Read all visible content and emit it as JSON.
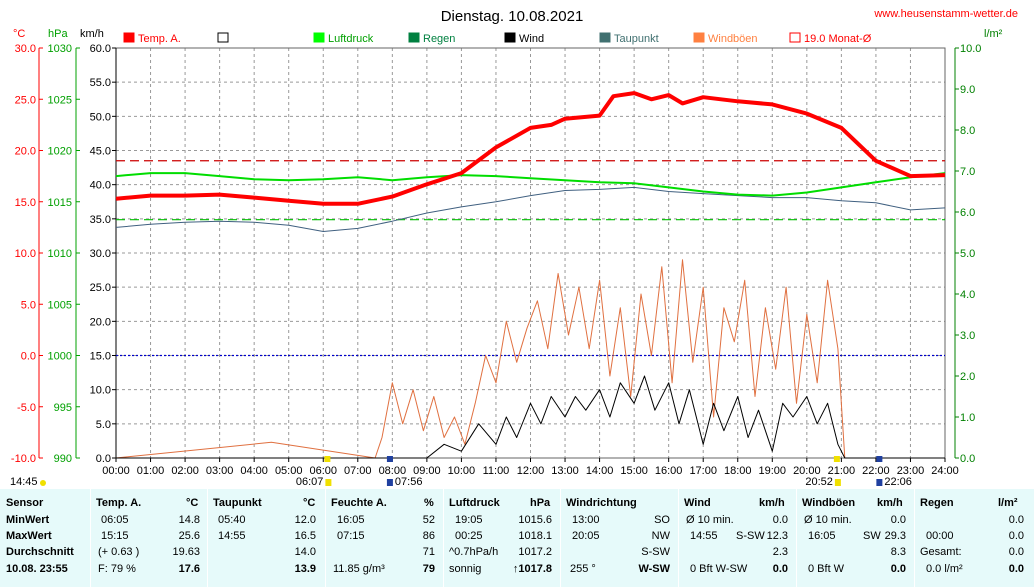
{
  "chart_data": {
    "type": "line",
    "title": "Dienstag. 10.08.2021",
    "site": "www.heusenstamm-wetter.de",
    "axes": {
      "temp": {
        "label": "°C",
        "min": -10,
        "max": 30,
        "step": 5,
        "color": "#ff0000"
      },
      "pressure": {
        "label": "hPa",
        "min": 990,
        "max": 1030,
        "step": 5,
        "color": "#00a000"
      },
      "wind": {
        "label": "km/h",
        "min": 0,
        "max": 60,
        "step": 5,
        "color": "#000000"
      },
      "rain": {
        "label": "l/m²",
        "min": 0,
        "max": 10,
        "step": 1,
        "color": "#008000"
      }
    },
    "x_ticks": [
      "00:00",
      "01:00",
      "02:00",
      "03:00",
      "04:00",
      "05:00",
      "06:00",
      "07:00",
      "08:00",
      "09:00",
      "10:00",
      "11:00",
      "12:00",
      "13:00",
      "14:00",
      "15:00",
      "16:00",
      "17:00",
      "18:00",
      "19:00",
      "20:00",
      "21:00",
      "22:00",
      "23:00",
      "24:00"
    ],
    "time_markers": [
      {
        "label": "14:45",
        "hour": 0
      },
      {
        "label": "06:07",
        "hour": 6.12
      },
      {
        "label": "07:56",
        "hour": 7.93
      },
      {
        "label": "20:52",
        "hour": 20.87
      },
      {
        "label": "22:06",
        "hour": 22.1
      }
    ],
    "legend": [
      {
        "name": "Temp. A.",
        "color": "#ff0000",
        "style": "filled"
      },
      {
        "name": "",
        "color": "#ffffff",
        "style": "empty"
      },
      {
        "name": "Luftdruck",
        "color": "#00ff00",
        "style": "filled"
      },
      {
        "name": "Regen",
        "color": "#008040",
        "style": "filled"
      },
      {
        "name": "Wind",
        "color": "#000000",
        "style": "filled"
      },
      {
        "name": "Taupunkt",
        "color": "#407070",
        "style": "filled"
      },
      {
        "name": "Windböen",
        "color": "#ff8040",
        "style": "filled"
      },
      {
        "name": "19.0 Monat-Ø",
        "color": "#ff0000",
        "style": "outline"
      }
    ],
    "reference_lines": [
      {
        "axis": "temp",
        "value": 19.0,
        "color": "#cc0000",
        "style": "dashed"
      },
      {
        "axis": "pressure",
        "value": 1013.25,
        "color": "#00c000",
        "style": "dashed"
      },
      {
        "axis": "pressure",
        "value": 1000,
        "color": "#0000cc",
        "style": "dotted"
      }
    ],
    "series": [
      {
        "name": "Temp. A.",
        "axis": "temp",
        "color": "#ff0000",
        "x": [
          0,
          1,
          2,
          3,
          4,
          5,
          6,
          7,
          8,
          9,
          10,
          11,
          12,
          12.6,
          13,
          14,
          14.4,
          15,
          15.5,
          16,
          16.4,
          17,
          18,
          19,
          20,
          21,
          22,
          23,
          24
        ],
        "y": [
          15.3,
          15.6,
          15.6,
          15.7,
          15.4,
          15.1,
          14.8,
          14.8,
          15.5,
          16.7,
          17.8,
          20.3,
          22.2,
          22.5,
          23.1,
          23.4,
          25.3,
          25.6,
          25.0,
          25.4,
          24.6,
          25.2,
          24.8,
          24.5,
          23.6,
          22.2,
          19.0,
          17.5,
          17.6
        ]
      },
      {
        "name": "Luftdruck",
        "axis": "pressure",
        "color": "#00dd00",
        "x": [
          0,
          1,
          2,
          3,
          4,
          5,
          6,
          7,
          8,
          9,
          10,
          11,
          12,
          13,
          14,
          15,
          16,
          17,
          18,
          19,
          20,
          21,
          22,
          23,
          24
        ],
        "y": [
          1017.5,
          1017.8,
          1017.8,
          1017.5,
          1017.2,
          1017.1,
          1017.2,
          1017.4,
          1017.1,
          1017.4,
          1017.6,
          1017.5,
          1017.3,
          1017.1,
          1016.9,
          1016.8,
          1016.4,
          1016.0,
          1015.7,
          1015.6,
          1015.9,
          1016.4,
          1016.9,
          1017.4,
          1017.8
        ]
      },
      {
        "name": "Taupunkt",
        "axis": "temp",
        "color": "#406080",
        "x": [
          0,
          1,
          2,
          3,
          4,
          5,
          6,
          7,
          8,
          9,
          10,
          11,
          12,
          13,
          14,
          15,
          16,
          17,
          18,
          19,
          20,
          21,
          22,
          23,
          24
        ],
        "y": [
          12.5,
          12.8,
          13.0,
          13.1,
          13.0,
          12.7,
          12.1,
          12.4,
          13.1,
          13.9,
          14.5,
          15.0,
          15.6,
          16.1,
          16.2,
          16.4,
          16.0,
          15.8,
          15.6,
          15.4,
          15.4,
          15.1,
          14.9,
          14.2,
          14.4
        ]
      },
      {
        "name": "Windböen",
        "axis": "wind",
        "color": "#e07040",
        "x": [
          0,
          4.5,
          7.5,
          7.7,
          8,
          8.3,
          8.6,
          8.9,
          9.2,
          9.5,
          9.8,
          10.1,
          10.4,
          10.7,
          11,
          11.3,
          11.6,
          11.9,
          12.2,
          12.5,
          12.8,
          13.1,
          13.4,
          13.7,
          14,
          14.3,
          14.6,
          14.9,
          15.2,
          15.5,
          15.8,
          16.1,
          16.4,
          16.7,
          17,
          17.3,
          17.6,
          17.9,
          18.2,
          18.5,
          18.8,
          19.1,
          19.4,
          19.7,
          20,
          20.3,
          20.6,
          20.9,
          21.1,
          24
        ],
        "y": [
          0,
          2.3,
          0,
          3,
          11,
          5,
          10,
          4,
          9,
          3,
          6,
          2,
          8,
          15,
          11,
          20,
          14,
          19,
          23,
          16,
          27,
          18,
          25,
          16,
          26,
          12,
          22,
          9,
          24,
          15,
          28,
          11,
          29,
          14,
          25,
          6,
          22,
          17,
          26,
          9,
          22,
          13,
          25,
          8,
          21,
          11,
          26,
          16,
          0,
          0
        ]
      },
      {
        "name": "Wind",
        "axis": "wind",
        "color": "#000000",
        "x": [
          0,
          9,
          9.5,
          10,
          10.5,
          11,
          11.3,
          11.6,
          12,
          12.3,
          12.6,
          13,
          13.3,
          13.6,
          14,
          14.3,
          14.6,
          15,
          15.3,
          15.6,
          16,
          16.3,
          16.6,
          17,
          17.3,
          17.6,
          18,
          18.3,
          18.6,
          19,
          19.3,
          19.6,
          20,
          20.3,
          20.6,
          20.9,
          21.1,
          24
        ],
        "y": [
          0,
          0,
          2,
          1,
          5,
          2,
          6,
          3,
          8,
          5,
          9,
          6,
          9,
          7,
          10,
          6,
          11,
          8,
          12,
          7,
          11,
          5,
          10,
          2,
          8,
          4,
          9,
          3,
          7,
          1,
          8,
          6,
          9,
          5,
          8,
          2,
          0,
          0
        ]
      }
    ]
  },
  "table": {
    "headers": {
      "sensor": "Sensor",
      "temp": "Temp. A.",
      "temp_unit": "°C",
      "taupunkt": "Taupunkt",
      "taupunkt_unit": "°C",
      "feuchte": "Feuchte A.",
      "feuchte_unit": "%",
      "luftdruck": "Luftdruck",
      "luftdruck_unit": "hPa",
      "windrichtung": "Windrichtung",
      "wind": "Wind",
      "wind_unit": "km/h",
      "windboeen": "Windböen",
      "windboeen_unit": "km/h",
      "regen": "Regen",
      "regen_unit": "l/m²"
    },
    "rows": {
      "min": {
        "label": "MinWert",
        "temp_time": "06:05",
        "temp": "14.8",
        "tau_time": "05:40",
        "tau": "12.0",
        "feu_time": "16:05",
        "feu": "52",
        "lu_time": "19:05",
        "lu": "1015.6",
        "wr_time": "13:00",
        "wr": "SO",
        "wi_time": "Ø 10 min.",
        "wi": "0.0",
        "wb_time": "Ø 10 min.",
        "wb": "0.0",
        "re_time": "",
        "re": "0.0"
      },
      "max": {
        "label": "MaxWert",
        "temp_time": "15:15",
        "temp": "25.6",
        "tau_time": "14:55",
        "tau": "16.5",
        "feu_time": "07:15",
        "feu": "86",
        "lu_time": "00:25",
        "lu": "1018.1",
        "wr_time": "20:05",
        "wr": "NW",
        "wi_time": "14:55",
        "wi_dir": "S-SW",
        "wi": "12.3",
        "wb_time": "16:05",
        "wb_dir": "SW",
        "wb": "29.3",
        "re_time": "00:00",
        "re": "0.0"
      },
      "avg": {
        "label": "Durchschnitt",
        "temp_time": "(+ 0.63 )",
        "temp": "19.63",
        "tau": "14.0",
        "feu": "71",
        "lu_time": "^0.7hPa/h",
        "lu": "1017.2",
        "wr": "S-SW",
        "wi": "2.3",
        "wb": "8.3",
        "re_time": "Gesamt:",
        "re": "0.0"
      },
      "cur": {
        "label": "10.08. 23:55",
        "temp_time": "F: 79 %",
        "temp": "17.6",
        "tau": "13.9",
        "feu_time": "11.85 g/m³",
        "feu": "79",
        "lu_time": "sonnig",
        "lu": "↑1017.8",
        "wr_time": "255 °",
        "wr": "W-SW",
        "wi_time": "0 Bft W-SW",
        "wi": "0.0",
        "wb_time": "0 Bft W",
        "wb": "0.0",
        "re_time": "0.0 l/m²",
        "re": "0.0"
      }
    }
  }
}
